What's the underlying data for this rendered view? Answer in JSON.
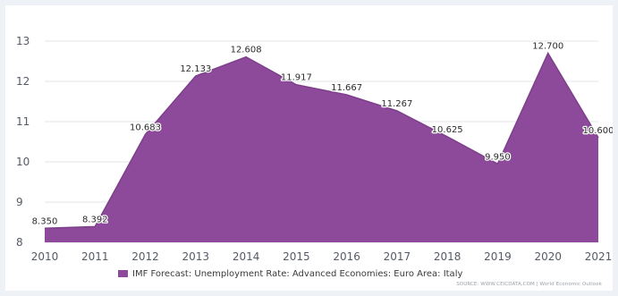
{
  "chart_data": {
    "type": "area",
    "x": [
      "2010",
      "2011",
      "2012",
      "2013",
      "2014",
      "2015",
      "2016",
      "2017",
      "2018",
      "2019",
      "2020",
      "2021"
    ],
    "series": [
      {
        "name": "IMF Forecast: Unemployment Rate: Advanced Economies: Euro Area: Italy",
        "values": [
          8.35,
          8.392,
          10.683,
          12.133,
          12.608,
          11.917,
          11.667,
          11.267,
          10.625,
          9.95,
          12.7,
          10.6
        ],
        "labels": [
          "8.350",
          "8.392",
          "10.683",
          "12.133",
          "12.608",
          "11.917",
          "11.667",
          "11.267",
          "10.625",
          "9.950",
          "12.700",
          "10.600"
        ]
      }
    ],
    "yticks": [
      "8",
      "9",
      "10",
      "11",
      "12",
      "13"
    ],
    "ylim": [
      8,
      13
    ],
    "grid": true,
    "legend_position": "bottom",
    "color": "#8e4a9a"
  },
  "source": "SOURCE: WWW.CEICDATA.COM | World Economic Outlook"
}
